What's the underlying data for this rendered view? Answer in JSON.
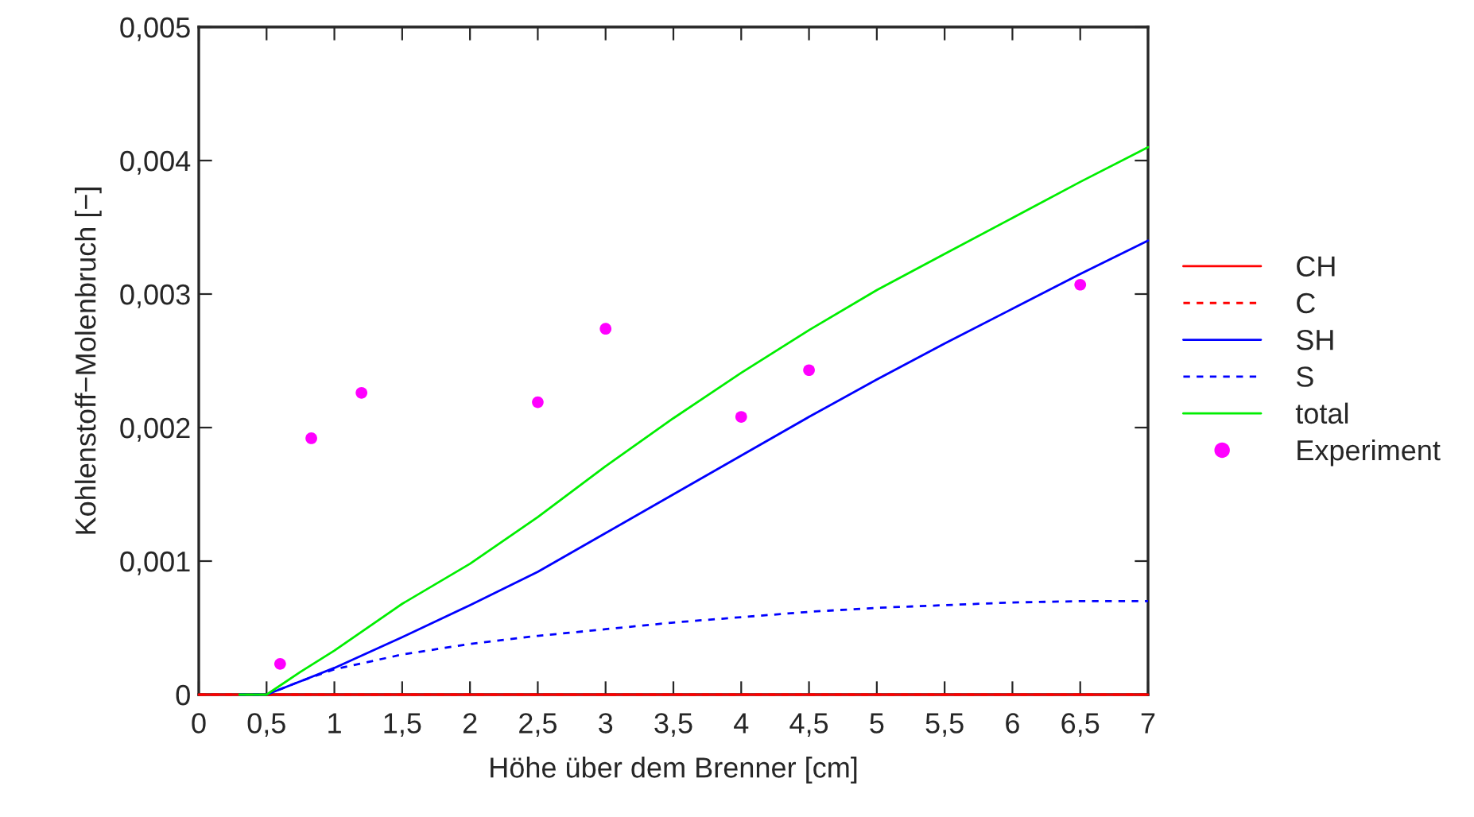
{
  "chart_data": {
    "type": "line",
    "xlabel": "Höhe über dem Brenner [cm]",
    "ylabel": "Kohlenstoff−Molenbruch [−]",
    "xlim": [
      0,
      7
    ],
    "ylim": [
      0,
      0.005
    ],
    "xticks": [
      0,
      {
        "value": 0.5,
        "label": "0,5"
      },
      1,
      {
        "value": 1.5,
        "label": "1,5"
      },
      2,
      {
        "value": 2.5,
        "label": "2,5"
      },
      3,
      {
        "value": 3.5,
        "label": "3,5"
      },
      4,
      {
        "value": 4.5,
        "label": "4,5"
      },
      5,
      {
        "value": 5.5,
        "label": "5,5"
      },
      6,
      {
        "value": 6.5,
        "label": "6,5"
      },
      7
    ],
    "yticks": [
      0,
      {
        "value": 0.001,
        "label": "0,001"
      },
      {
        "value": 0.002,
        "label": "0,002"
      },
      {
        "value": 0.003,
        "label": "0,003"
      },
      {
        "value": 0.004,
        "label": "0,004"
      },
      {
        "value": 0.005,
        "label": "0,005"
      }
    ],
    "grid": false,
    "legend": "right",
    "series": [
      {
        "name": "CH",
        "color": "#ff0000",
        "line_style": "solid",
        "x": [
          0,
          7
        ],
        "values": [
          0,
          0
        ]
      },
      {
        "name": "C",
        "color": "#ff0000",
        "line_style": "dashed",
        "x": [
          0,
          7
        ],
        "values": [
          0,
          0
        ]
      },
      {
        "name": "SH",
        "color": "#0000ff",
        "line_style": "solid",
        "x": [
          0.3,
          0.5,
          0.75,
          1,
          1.5,
          2,
          2.5,
          3,
          3.5,
          4,
          4.5,
          5,
          5.5,
          6,
          6.5,
          7
        ],
        "values": [
          0,
          0,
          0.0001,
          0.0002,
          0.00043,
          0.00067,
          0.00092,
          0.00121,
          0.0015,
          0.00179,
          0.00208,
          0.00236,
          0.00263,
          0.00289,
          0.00315,
          0.0034
        ]
      },
      {
        "name": "S",
        "color": "#0000ff",
        "line_style": "dashed",
        "x": [
          0.3,
          0.5,
          0.75,
          1,
          1.5,
          2,
          2.5,
          3,
          3.5,
          4,
          4.5,
          5,
          5.5,
          6,
          6.5,
          7
        ],
        "values": [
          0,
          0,
          0.0001,
          0.00019,
          0.0003,
          0.00038,
          0.00044,
          0.00049,
          0.00054,
          0.00058,
          0.00062,
          0.00065,
          0.00067,
          0.00069,
          0.0007,
          0.0007
        ]
      },
      {
        "name": "total",
        "color": "#00ee00",
        "line_style": "solid",
        "x": [
          0.3,
          0.5,
          0.75,
          1,
          1.5,
          2,
          2.5,
          3,
          3.5,
          4,
          4.5,
          5,
          5.5,
          6,
          6.5,
          7
        ],
        "values": [
          0,
          0,
          0.00017,
          0.00033,
          0.00068,
          0.00098,
          0.00133,
          0.00171,
          0.00207,
          0.00241,
          0.00273,
          0.00303,
          0.0033,
          0.00357,
          0.00384,
          0.0041
        ]
      },
      {
        "name": "Experiment",
        "type": "scatter",
        "color": "#ff00ff",
        "marker": "circle",
        "x": [
          0.6,
          0.83,
          1.2,
          2.5,
          3.0,
          4.0,
          4.5,
          6.5
        ],
        "values": [
          0.00023,
          0.00192,
          0.00226,
          0.00219,
          0.00274,
          0.00208,
          0.00243,
          0.00307
        ]
      }
    ]
  }
}
